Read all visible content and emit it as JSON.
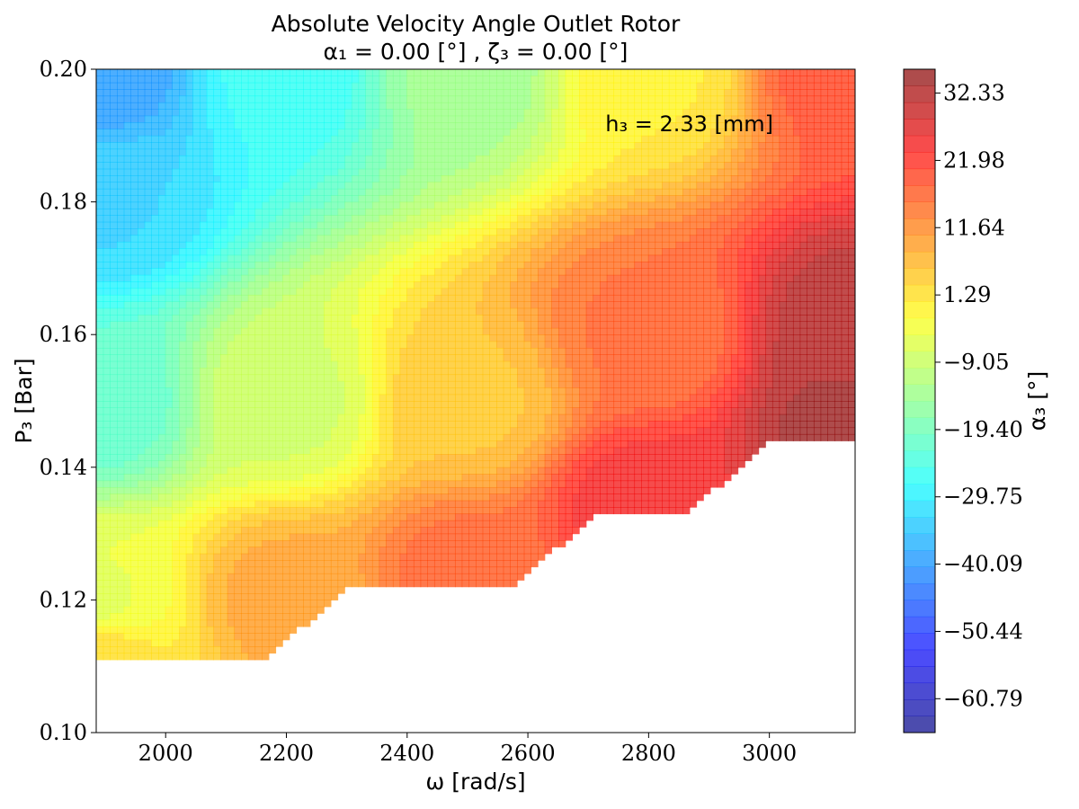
{
  "chart_data": {
    "type": "contourf",
    "title": "Absolute Velocity Angle Outlet Rotor",
    "subtitle": "α₁ = 0.00 [°] , ζ₃ = 0.00 [°]",
    "xlabel": "ω [rad/s]",
    "ylabel": "P₃ [Bar]",
    "colorbar_label": "α₃ [°]",
    "annotation": "h₃ = 2.33 [mm]",
    "xlim": [
      1885,
      3142
    ],
    "ylim": [
      0.1,
      0.2
    ],
    "x_ticks": [
      2000,
      2200,
      2400,
      2600,
      2800,
      3000
    ],
    "y_ticks": [
      0.1,
      0.12,
      0.14,
      0.16,
      0.18,
      0.2
    ],
    "y_tick_labels": [
      "0.10",
      "0.12",
      "0.14",
      "0.16",
      "0.18",
      "0.20"
    ],
    "colorbar_range": [
      -66,
      36
    ],
    "colorbar_ticks": [
      32.33,
      21.98,
      11.64,
      1.29,
      -9.05,
      -19.4,
      -29.75,
      -40.09,
      -50.44,
      -60.79
    ],
    "colorbar_tick_labels": [
      "32.33",
      "21.98",
      "11.64",
      "1.29",
      "−9.05",
      "−19.40",
      "−29.75",
      "−40.09",
      "−50.44",
      "−60.79"
    ],
    "colormap": "jet",
    "alpha": 0.7,
    "field_samples": [
      {
        "x": 1890,
        "y": 0.2,
        "value": -40
      },
      {
        "x": 1890,
        "y": 0.18,
        "value": -33
      },
      {
        "x": 1890,
        "y": 0.15,
        "value": -22
      },
      {
        "x": 1890,
        "y": 0.12,
        "value": -5
      },
      {
        "x": 1890,
        "y": 0.111,
        "value": 2
      },
      {
        "x": 2200,
        "y": 0.2,
        "value": -27
      },
      {
        "x": 2200,
        "y": 0.15,
        "value": -8
      },
      {
        "x": 2200,
        "y": 0.12,
        "value": 9
      },
      {
        "x": 2500,
        "y": 0.2,
        "value": -14
      },
      {
        "x": 2500,
        "y": 0.15,
        "value": 5
      },
      {
        "x": 2500,
        "y": 0.123,
        "value": 17
      },
      {
        "x": 2800,
        "y": 0.2,
        "value": 0
      },
      {
        "x": 2800,
        "y": 0.16,
        "value": 16
      },
      {
        "x": 2800,
        "y": 0.134,
        "value": 25
      },
      {
        "x": 3140,
        "y": 0.2,
        "value": 20
      },
      {
        "x": 3140,
        "y": 0.16,
        "value": 33
      },
      {
        "x": 3140,
        "y": 0.145,
        "value": 35
      }
    ],
    "valid_region_lower_boundary": [
      {
        "x": 1885,
        "y": 0.111
      },
      {
        "x": 2165,
        "y": 0.111
      },
      {
        "x": 2305,
        "y": 0.1222
      },
      {
        "x": 2580,
        "y": 0.1222
      },
      {
        "x": 2715,
        "y": 0.1333
      },
      {
        "x": 2865,
        "y": 0.1333
      },
      {
        "x": 3010,
        "y": 0.1444
      },
      {
        "x": 3142,
        "y": 0.1444
      }
    ]
  }
}
